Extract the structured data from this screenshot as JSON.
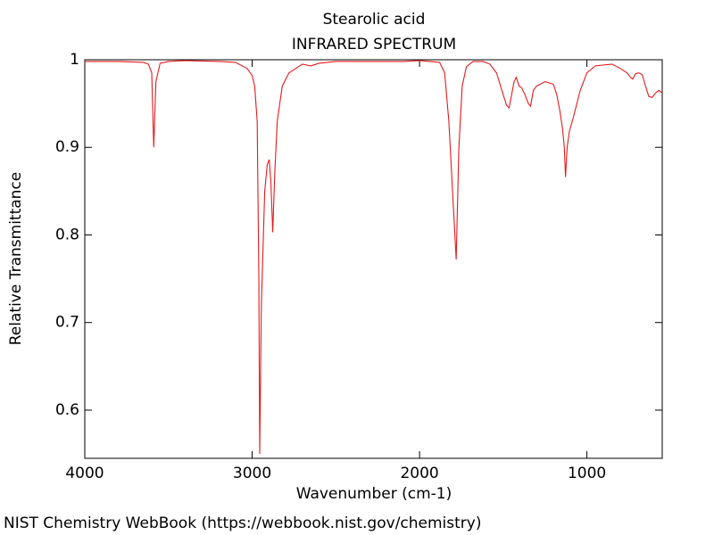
{
  "chart_data": {
    "type": "line",
    "title": "Stearolic acid",
    "subtitle": "INFRARED SPECTRUM",
    "x_label": "Wavenumber (cm-1)",
    "y_label": "Relative Transmittance",
    "footer": "NIST Chemistry WebBook (https://webbook.nist.gov/chemistry)",
    "x": [
      4000,
      3800,
      3650,
      3620,
      3600,
      3588,
      3575,
      3550,
      3500,
      3400,
      3200,
      3100,
      3030,
      3000,
      2985,
      2970,
      2960,
      2955,
      2945,
      2925,
      2910,
      2898,
      2888,
      2877,
      2865,
      2850,
      2820,
      2780,
      2740,
      2700,
      2650,
      2600,
      2500,
      2300,
      2100,
      2000,
      1880,
      1850,
      1825,
      1800,
      1781,
      1765,
      1745,
      1720,
      1680,
      1620,
      1580,
      1540,
      1500,
      1480,
      1465,
      1450,
      1435,
      1422,
      1405,
      1390,
      1370,
      1350,
      1337,
      1320,
      1300,
      1250,
      1200,
      1180,
      1160,
      1145,
      1135,
      1128,
      1118,
      1105,
      1080,
      1040,
      1000,
      950,
      850,
      800,
      760,
      740,
      727,
      710,
      690,
      670,
      650,
      630,
      610,
      590,
      570,
      550
    ],
    "values": [
      0.998,
      0.998,
      0.997,
      0.995,
      0.985,
      0.9,
      0.975,
      0.996,
      0.998,
      0.999,
      0.998,
      0.997,
      0.99,
      0.982,
      0.97,
      0.93,
      0.75,
      0.55,
      0.72,
      0.85,
      0.88,
      0.886,
      0.86,
      0.803,
      0.87,
      0.93,
      0.97,
      0.985,
      0.99,
      0.995,
      0.993,
      0.996,
      0.998,
      0.998,
      0.998,
      0.999,
      0.997,
      0.985,
      0.93,
      0.84,
      0.772,
      0.9,
      0.97,
      0.992,
      0.998,
      0.998,
      0.995,
      0.985,
      0.96,
      0.948,
      0.945,
      0.96,
      0.975,
      0.98,
      0.97,
      0.968,
      0.96,
      0.95,
      0.947,
      0.965,
      0.97,
      0.975,
      0.972,
      0.96,
      0.94,
      0.92,
      0.9,
      0.866,
      0.9,
      0.918,
      0.935,
      0.965,
      0.985,
      0.993,
      0.995,
      0.99,
      0.985,
      0.98,
      0.978,
      0.984,
      0.985,
      0.983,
      0.97,
      0.958,
      0.957,
      0.962,
      0.965,
      0.962
    ],
    "color": "#e41a1c",
    "xlim": [
      4000,
      550
    ],
    "ylim": [
      0.545,
      1.0
    ],
    "xticks": [
      4000,
      3000,
      2000,
      1000
    ],
    "yticks": [
      0.6,
      0.7,
      0.8,
      0.9,
      1
    ]
  }
}
